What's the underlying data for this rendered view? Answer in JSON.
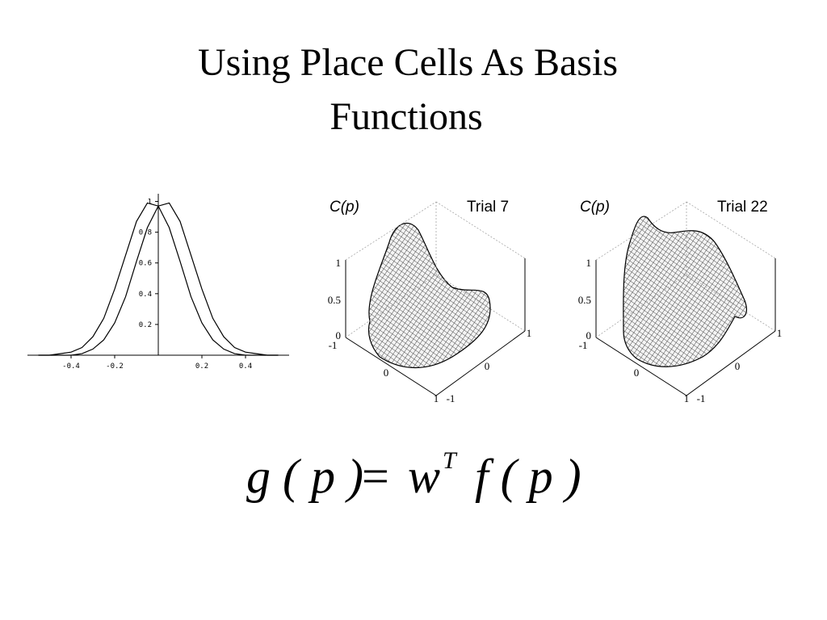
{
  "title": [
    "Using Place Cells As Basis",
    "Functions"
  ],
  "chart_data": {
    "type": "line",
    "x": [
      -0.55,
      -0.5,
      -0.45,
      -0.4,
      -0.35,
      -0.3,
      -0.25,
      -0.2,
      -0.15,
      -0.1,
      -0.05,
      0,
      0.05,
      0.1,
      0.15,
      0.2,
      0.25,
      0.3,
      0.35,
      0.4,
      0.45,
      0.5,
      0.55
    ],
    "series": [
      {
        "color": "#000000",
        "values": [
          0,
          0,
          0.01,
          0.02,
          0.05,
          0.12,
          0.24,
          0.43,
          0.65,
          0.87,
          0.99,
          0.97,
          0.83,
          0.61,
          0.38,
          0.21,
          0.1,
          0.04,
          0.01,
          0,
          0,
          0,
          0
        ]
      },
      {
        "color": "#000000",
        "values": [
          0,
          0,
          0,
          0,
          0.01,
          0.04,
          0.1,
          0.21,
          0.38,
          0.61,
          0.83,
          0.97,
          0.99,
          0.87,
          0.65,
          0.43,
          0.24,
          0.12,
          0.05,
          0.02,
          0.01,
          0,
          0
        ]
      }
    ],
    "xlim": [
      -0.6,
      0.6
    ],
    "ylim": [
      0,
      1.05
    ],
    "xticks": [
      -0.4,
      -0.2,
      0.2,
      0.4
    ],
    "yticks": [
      0.2,
      0.4,
      0.6,
      0.8,
      1
    ]
  },
  "surfaces": [
    {
      "z_label": "C(p)",
      "trial": "Trial 7",
      "z_ticks": [
        "1",
        "0.5",
        "0"
      ],
      "x_ticks": [
        "-1",
        "0",
        "1"
      ],
      "y_ticks": [
        "-1",
        "0",
        "1"
      ]
    },
    {
      "z_label": "C(p)",
      "trial": "Trial 22",
      "z_ticks": [
        "1",
        "0.5",
        "0"
      ],
      "x_ticks": [
        "-1",
        "0",
        "1"
      ],
      "y_ticks": [
        "-1",
        "0",
        "1"
      ]
    }
  ],
  "formula": {
    "left": "g ( p )",
    "equals": "=",
    "w": "w",
    "sup": "T",
    "right": "f ( p )"
  }
}
